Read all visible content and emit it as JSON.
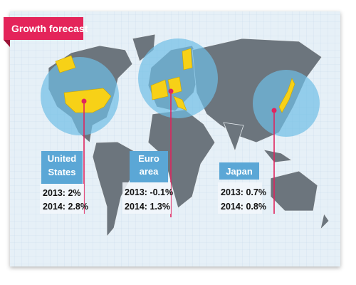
{
  "header": {
    "title": "Growth forecast"
  },
  "regions": [
    {
      "name_lines": [
        "United",
        "States"
      ],
      "stats": [
        "2013: 2%",
        "2014: 2.8%"
      ]
    },
    {
      "name_lines": [
        "Euro",
        "area"
      ],
      "stats": [
        "2013: -0.1%",
        "2014: 1.3%"
      ]
    },
    {
      "name_lines": [
        "Japan"
      ],
      "stats": [
        "2013: 0.7%",
        "2014: 0.8%"
      ]
    }
  ]
}
